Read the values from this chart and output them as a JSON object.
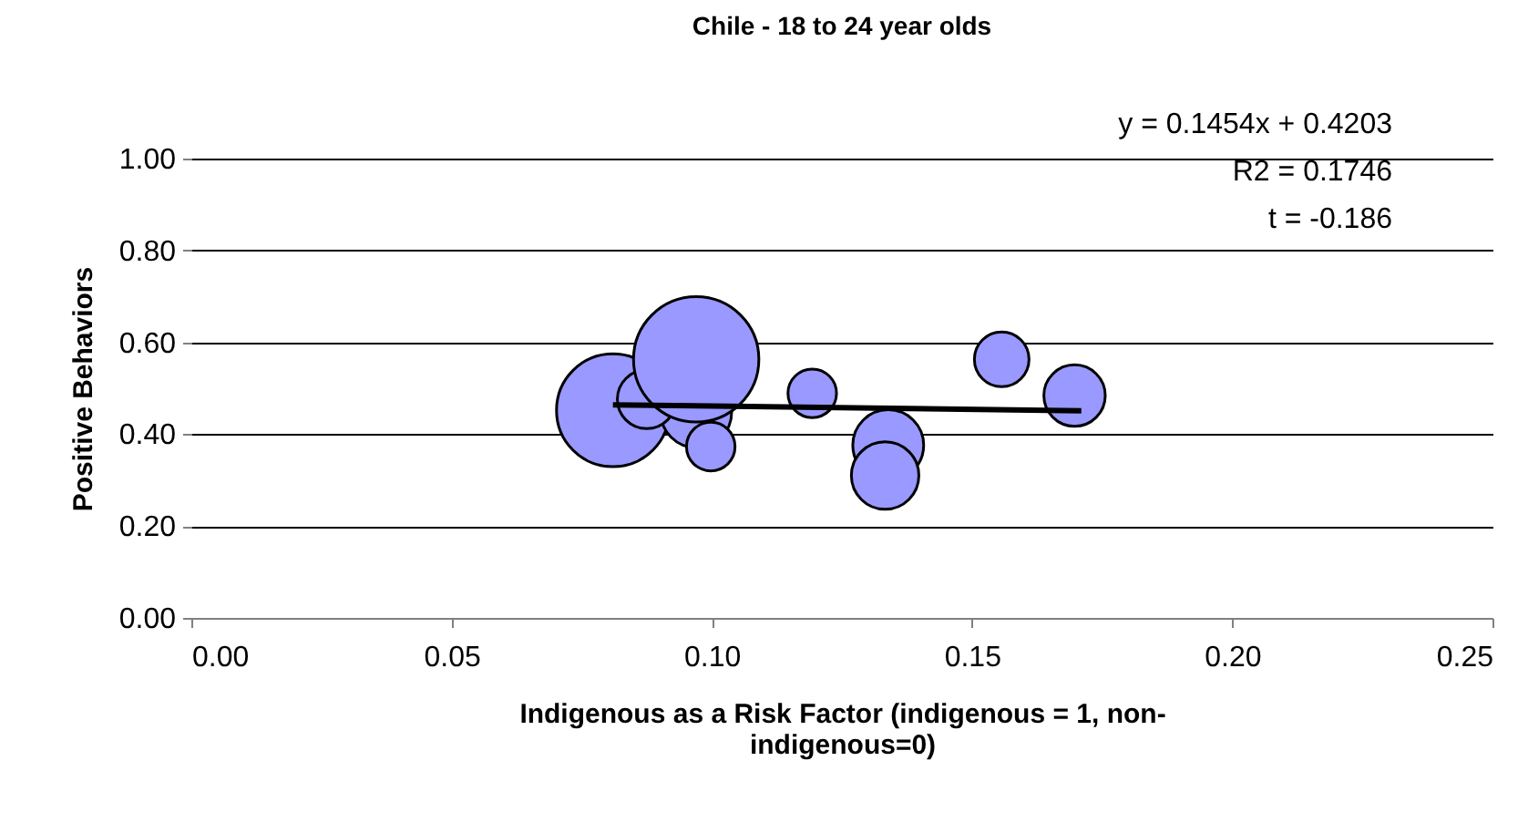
{
  "chart_data": {
    "type": "bubble",
    "title": "Chile - 18 to 24 year olds",
    "xlabel": "Indigenous as a Risk Factor (indigenous = 1, non-indigenous=0)",
    "ylabel": "Positive Behaviors",
    "annotations": [
      "y = 0.1454x + 0.4203",
      "R2 = 0.1746",
      "t = -0.186"
    ],
    "xlim": [
      0,
      0.25
    ],
    "xticks": [
      {
        "value": 0,
        "label": "0.00"
      },
      {
        "value": 0.05,
        "label": "0.05"
      },
      {
        "value": 0.1,
        "label": "0.10"
      },
      {
        "value": 0.15,
        "label": "0.15"
      },
      {
        "value": 0.2,
        "label": "0.20"
      },
      {
        "value": 0.25,
        "label": "0.25"
      }
    ],
    "ylim": [
      0,
      1
    ],
    "yticks": [
      {
        "value": 0,
        "label": "0.00"
      },
      {
        "value": 0.2,
        "label": "0.20"
      },
      {
        "value": 0.4,
        "label": "0.40"
      },
      {
        "value": 0.6,
        "label": "0.60"
      },
      {
        "value": 0.8,
        "label": "0.80"
      },
      {
        "value": 1,
        "label": "1.00"
      }
    ],
    "grid": "y",
    "series": [
      {
        "color": "#9999ff",
        "x": [
          0.081,
          0.097,
          0.0875,
          0.097,
          0.0998,
          0.1193,
          0.1339,
          0.1333,
          0.1557,
          0.1697
        ],
        "values": [
          0.452,
          0.448,
          0.476,
          0.563,
          0.373,
          0.489,
          0.376,
          0.31,
          0.563,
          0.484
        ],
        "sizes": [
          0.81,
          0.32,
          0.22,
          1,
          0.15,
          0.15,
          0.32,
          0.29,
          0.19,
          0.24
        ]
      },
      {
        "type": "line",
        "color": "#000000",
        "x": [
          0.081,
          0.171
        ],
        "values": [
          0.464,
          0.451
        ]
      }
    ]
  }
}
